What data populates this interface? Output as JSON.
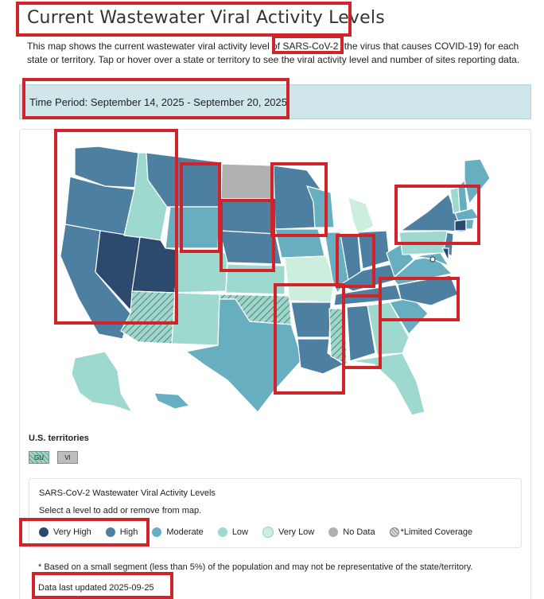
{
  "title": "Current Wastewater Viral Activity Levels",
  "description": "This map shows the current wastewater viral activity level of SARS-CoV-2 (the virus that causes COVID-19) for each state or territory. Tap or hover over a state or territory to see the viral activity level and number of sites reporting data.",
  "time_period": "Time Period: September 14, 2025 - September 20, 2025",
  "colors": {
    "very_high": "#2b4a6e",
    "high": "#4d7fa0",
    "moderate": "#67aec0",
    "low": "#9dd9cf",
    "very_low": "#cdeedd",
    "no_data": "#b0b0b0"
  },
  "territories": {
    "heading": "U.S. territories",
    "items": [
      {
        "code": "GU",
        "level": "limited"
      },
      {
        "code": "VI",
        "level": "no_data"
      }
    ]
  },
  "legend": {
    "title": "SARS-CoV-2 Wastewater Viral Activity Levels",
    "subtitle": "Select a level to add or remove from map.",
    "items": [
      {
        "key": "very_high",
        "label": "Very High"
      },
      {
        "key": "high",
        "label": "High"
      },
      {
        "key": "moderate",
        "label": "Moderate"
      },
      {
        "key": "low",
        "label": "Low"
      },
      {
        "key": "very_low",
        "label": "Very Low"
      },
      {
        "key": "no_data",
        "label": "No Data"
      },
      {
        "key": "limited",
        "label": "*Limited Coverage"
      }
    ]
  },
  "footnote": "* Based on a small segment (less than 5%) of the population and may not be representative of the state/territory.",
  "updated": "Data last updated 2025-09-25"
}
